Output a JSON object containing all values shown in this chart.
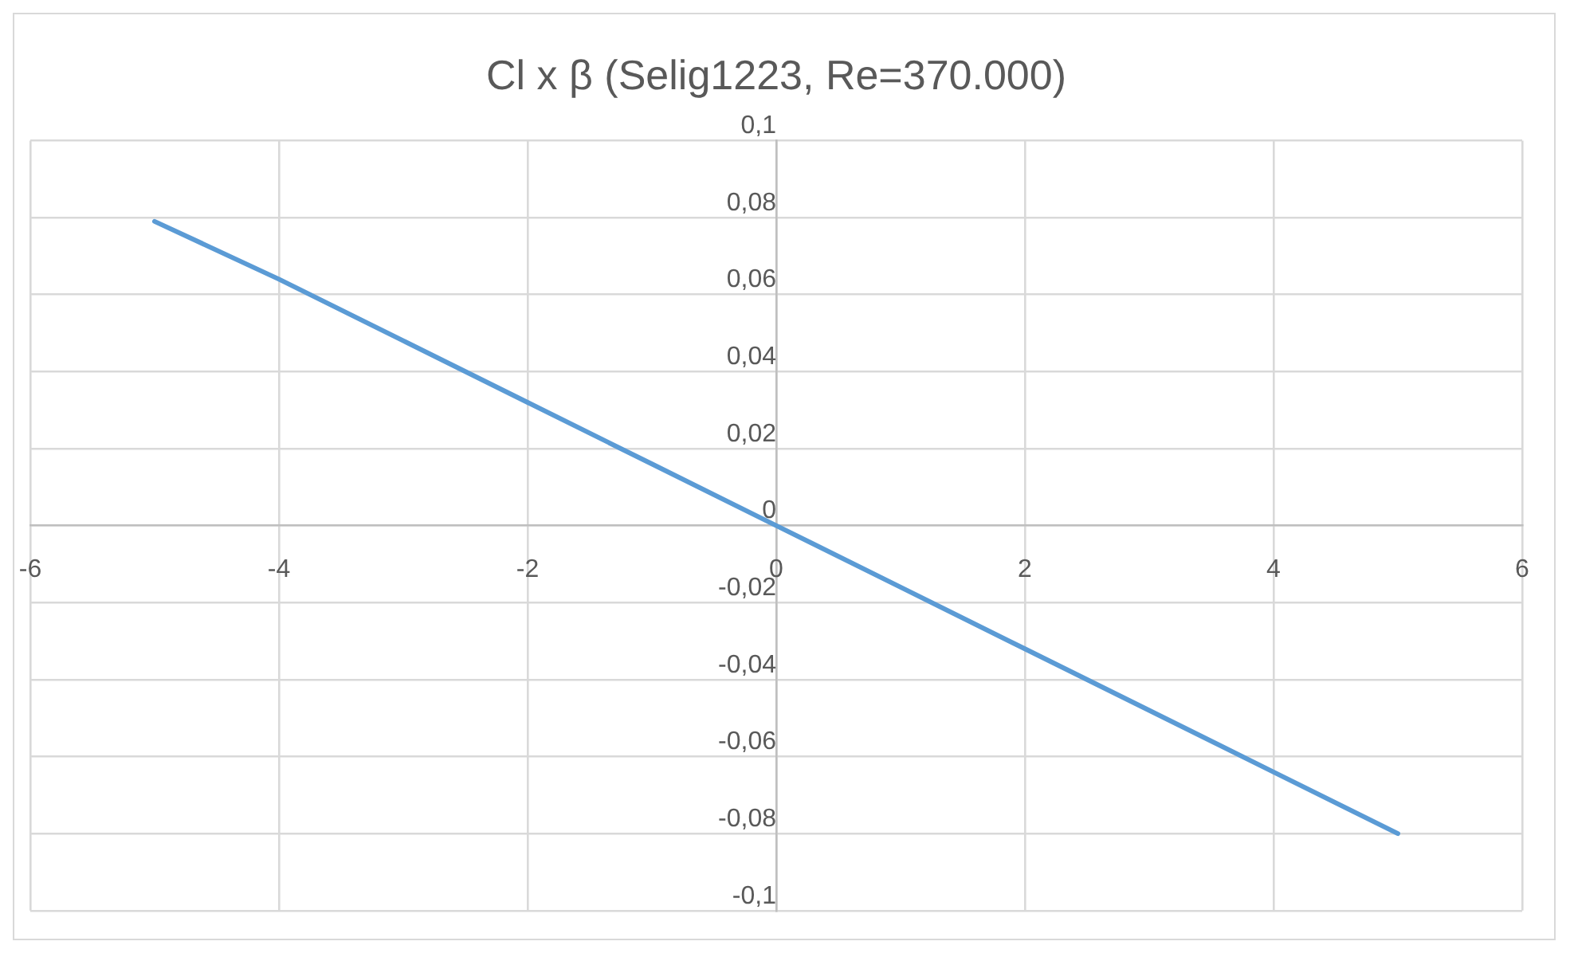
{
  "chart_data": {
    "type": "line",
    "title": "Cl x β (Selig1223, Re=370.000)",
    "x": [
      -5,
      -4,
      -3,
      -2,
      -1,
      0,
      1,
      2,
      3,
      4,
      5
    ],
    "series": [
      {
        "color": "#5b9bd5",
        "values": [
          0.079,
          0.064,
          0.048,
          0.032,
          0.016,
          0,
          -0.016,
          -0.032,
          -0.048,
          -0.064,
          -0.08
        ]
      }
    ],
    "xlim": [
      -6,
      6
    ],
    "xticks": [
      -6,
      -4,
      -2,
      0,
      2,
      4,
      6
    ],
    "ylim": [
      -0.1,
      0.1
    ],
    "yticks": [
      {
        "value": -0.1,
        "label": "-0,1"
      },
      {
        "value": -0.08,
        "label": "-0,08"
      },
      {
        "value": -0.06,
        "label": "-0,06"
      },
      {
        "value": -0.04,
        "label": "-0,04"
      },
      {
        "value": -0.02,
        "label": "-0,02"
      },
      {
        "value": 0,
        "label": "0"
      },
      {
        "value": 0.02,
        "label": "0,02"
      },
      {
        "value": 0.04,
        "label": "0,04"
      },
      {
        "value": 0.06,
        "label": "0,06"
      },
      {
        "value": 0.08,
        "label": "0,08"
      },
      {
        "value": 0.1,
        "label": "0,1"
      }
    ],
    "grid": true,
    "marker": "none",
    "line_style": "solid"
  }
}
